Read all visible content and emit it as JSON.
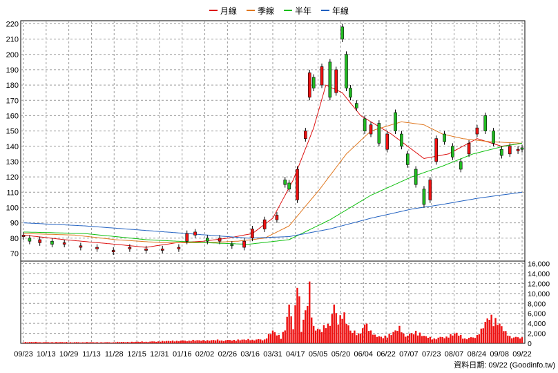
{
  "chart_data": {
    "type": "candlestick",
    "legend": [
      {
        "name": "月線",
        "color": "#dd1010"
      },
      {
        "name": "季線",
        "color": "#e07820"
      },
      {
        "name": "半年",
        "color": "#10c010"
      },
      {
        "name": "年線",
        "color": "#2060c0"
      }
    ],
    "price_axis": {
      "ylim": [
        65,
        222
      ],
      "ticks": [
        70,
        80,
        90,
        100,
        110,
        120,
        130,
        140,
        150,
        160,
        170,
        180,
        190,
        200,
        210,
        220
      ]
    },
    "volume_axis": {
      "ylim": [
        0,
        16500
      ],
      "ticks": [
        0,
        2000,
        4000,
        6000,
        8000,
        10000,
        12000,
        14000,
        16000
      ],
      "tick_labels": [
        "0",
        "2,000",
        "4,000",
        "6,000",
        "8,000",
        "10,000",
        "12,000",
        "14,000",
        "16,000"
      ]
    },
    "x_labels": [
      "09/23",
      "10/13",
      "10/29",
      "11/13",
      "11/28",
      "12/15",
      "12/31",
      "01/16",
      "02/02",
      "02/26",
      "03/16",
      "03/31",
      "04/17",
      "05/05",
      "05/20",
      "06/04",
      "06/22",
      "07/07",
      "07/23",
      "08/07",
      "08/24",
      "09/08",
      "09/22"
    ],
    "moving_averages": [
      {
        "name": "月線",
        "keys": [
          [
            0,
            82
          ],
          [
            20,
            79
          ],
          [
            45,
            76
          ],
          [
            60,
            74
          ],
          [
            75,
            77
          ],
          [
            88,
            78
          ],
          [
            100,
            80
          ],
          [
            112,
            83
          ],
          [
            122,
            93
          ],
          [
            132,
            118
          ],
          [
            142,
            152
          ],
          [
            148,
            180
          ],
          [
            156,
            175
          ],
          [
            165,
            160
          ],
          [
            180,
            148
          ],
          [
            196,
            132
          ],
          [
            208,
            135
          ],
          [
            222,
            145
          ],
          [
            234,
            140
          ],
          [
            244,
            142
          ]
        ]
      },
      {
        "name": "季線",
        "keys": [
          [
            0,
            83
          ],
          [
            25,
            82
          ],
          [
            45,
            79
          ],
          [
            68,
            77
          ],
          [
            88,
            77
          ],
          [
            105,
            78
          ],
          [
            118,
            80
          ],
          [
            130,
            88
          ],
          [
            145,
            112
          ],
          [
            158,
            135
          ],
          [
            170,
            150
          ],
          [
            185,
            156
          ],
          [
            196,
            154
          ],
          [
            205,
            148
          ],
          [
            215,
            145
          ],
          [
            228,
            143
          ],
          [
            244,
            142
          ]
        ]
      },
      {
        "name": "半年",
        "keys": [
          [
            0,
            84
          ],
          [
            30,
            83
          ],
          [
            60,
            79
          ],
          [
            90,
            77
          ],
          [
            110,
            76
          ],
          [
            130,
            79
          ],
          [
            150,
            92
          ],
          [
            170,
            108
          ],
          [
            190,
            120
          ],
          [
            205,
            127
          ],
          [
            220,
            135
          ],
          [
            235,
            140
          ],
          [
            244,
            142
          ]
        ]
      },
      {
        "name": "年線",
        "keys": [
          [
            0,
            90
          ],
          [
            30,
            88
          ],
          [
            60,
            85
          ],
          [
            90,
            82
          ],
          [
            110,
            80
          ],
          [
            130,
            81
          ],
          [
            150,
            86
          ],
          [
            170,
            93
          ],
          [
            190,
            99
          ],
          [
            205,
            102
          ],
          [
            222,
            106
          ],
          [
            244,
            110
          ]
        ]
      }
    ],
    "candles": [
      {
        "i": 0,
        "o": 81,
        "c": 82
      },
      {
        "i": 3,
        "o": 80,
        "c": 78
      },
      {
        "i": 8,
        "o": 77,
        "c": 79
      },
      {
        "i": 14,
        "o": 78,
        "c": 76
      },
      {
        "i": 20,
        "o": 76,
        "c": 77
      },
      {
        "i": 28,
        "o": 74,
        "c": 75
      },
      {
        "i": 36,
        "o": 73,
        "c": 74
      },
      {
        "i": 44,
        "o": 71,
        "c": 72
      },
      {
        "i": 52,
        "o": 73,
        "c": 74
      },
      {
        "i": 60,
        "o": 72,
        "c": 73
      },
      {
        "i": 68,
        "o": 72,
        "c": 73
      },
      {
        "i": 76,
        "o": 73,
        "c": 74
      },
      {
        "i": 80,
        "o": 78,
        "c": 83
      },
      {
        "i": 84,
        "o": 82,
        "c": 84
      },
      {
        "i": 90,
        "o": 80,
        "c": 78
      },
      {
        "i": 96,
        "o": 78,
        "c": 80
      },
      {
        "i": 102,
        "o": 76,
        "c": 75
      },
      {
        "i": 108,
        "o": 74,
        "c": 78
      },
      {
        "i": 112,
        "o": 80,
        "c": 86
      },
      {
        "i": 118,
        "o": 86,
        "c": 92
      },
      {
        "i": 124,
        "o": 92,
        "c": 95
      },
      {
        "i": 128,
        "o": 118,
        "c": 115
      },
      {
        "i": 130,
        "o": 116,
        "c": 112
      },
      {
        "i": 134,
        "o": 105,
        "c": 125
      },
      {
        "i": 138,
        "o": 145,
        "c": 150
      },
      {
        "i": 140,
        "o": 172,
        "c": 188
      },
      {
        "i": 142,
        "o": 185,
        "c": 178
      },
      {
        "i": 146,
        "o": 180,
        "c": 192
      },
      {
        "i": 150,
        "o": 195,
        "c": 172
      },
      {
        "i": 153,
        "o": 175,
        "c": 190
      },
      {
        "i": 156,
        "o": 218,
        "c": 210
      },
      {
        "i": 158,
        "o": 200,
        "c": 178
      },
      {
        "i": 160,
        "o": 178,
        "c": 172
      },
      {
        "i": 163,
        "o": 168,
        "c": 165
      },
      {
        "i": 167,
        "o": 158,
        "c": 150
      },
      {
        "i": 170,
        "o": 148,
        "c": 154
      },
      {
        "i": 174,
        "o": 155,
        "c": 142
      },
      {
        "i": 178,
        "o": 138,
        "c": 148
      },
      {
        "i": 182,
        "o": 162,
        "c": 150
      },
      {
        "i": 185,
        "o": 148,
        "c": 140
      },
      {
        "i": 188,
        "o": 135,
        "c": 128
      },
      {
        "i": 192,
        "o": 125,
        "c": 115
      },
      {
        "i": 196,
        "o": 112,
        "c": 102
      },
      {
        "i": 199,
        "o": 105,
        "c": 118
      },
      {
        "i": 202,
        "o": 130,
        "c": 145
      },
      {
        "i": 206,
        "o": 148,
        "c": 143
      },
      {
        "i": 210,
        "o": 140,
        "c": 133
      },
      {
        "i": 214,
        "o": 130,
        "c": 125
      },
      {
        "i": 218,
        "o": 135,
        "c": 142
      },
      {
        "i": 222,
        "o": 148,
        "c": 152
      },
      {
        "i": 226,
        "o": 160,
        "c": 150
      },
      {
        "i": 230,
        "o": 150,
        "c": 142
      },
      {
        "i": 234,
        "o": 138,
        "c": 134
      },
      {
        "i": 238,
        "o": 135,
        "c": 140
      },
      {
        "i": 242,
        "o": 137,
        "c": 138
      },
      {
        "i": 244,
        "o": 139,
        "c": 138
      }
    ],
    "volume_profile": [
      [
        0,
        300
      ],
      [
        40,
        250
      ],
      [
        60,
        400
      ],
      [
        80,
        700
      ],
      [
        100,
        800
      ],
      [
        118,
        1000
      ],
      [
        122,
        3000
      ],
      [
        126,
        1500
      ],
      [
        128,
        4000
      ],
      [
        130,
        9000
      ],
      [
        132,
        5000
      ],
      [
        134,
        16000
      ],
      [
        136,
        3000
      ],
      [
        138,
        8000
      ],
      [
        140,
        14500
      ],
      [
        142,
        4000
      ],
      [
        146,
        3000
      ],
      [
        150,
        6000
      ],
      [
        152,
        9000
      ],
      [
        154,
        6000
      ],
      [
        156,
        8000
      ],
      [
        160,
        3000
      ],
      [
        164,
        2500
      ],
      [
        168,
        5000
      ],
      [
        172,
        1800
      ],
      [
        176,
        1500
      ],
      [
        180,
        2500
      ],
      [
        184,
        3500
      ],
      [
        188,
        2000
      ],
      [
        192,
        3000
      ],
      [
        196,
        1800
      ],
      [
        200,
        1200
      ],
      [
        204,
        1500
      ],
      [
        208,
        1800
      ],
      [
        212,
        2500
      ],
      [
        216,
        1200
      ],
      [
        220,
        1500
      ],
      [
        224,
        3000
      ],
      [
        228,
        7000
      ],
      [
        232,
        5500
      ],
      [
        236,
        2500
      ],
      [
        240,
        1500
      ],
      [
        244,
        1500
      ]
    ]
  },
  "footer": {
    "text": "資料日期: 09/22 (Goodinfo.tw)"
  }
}
